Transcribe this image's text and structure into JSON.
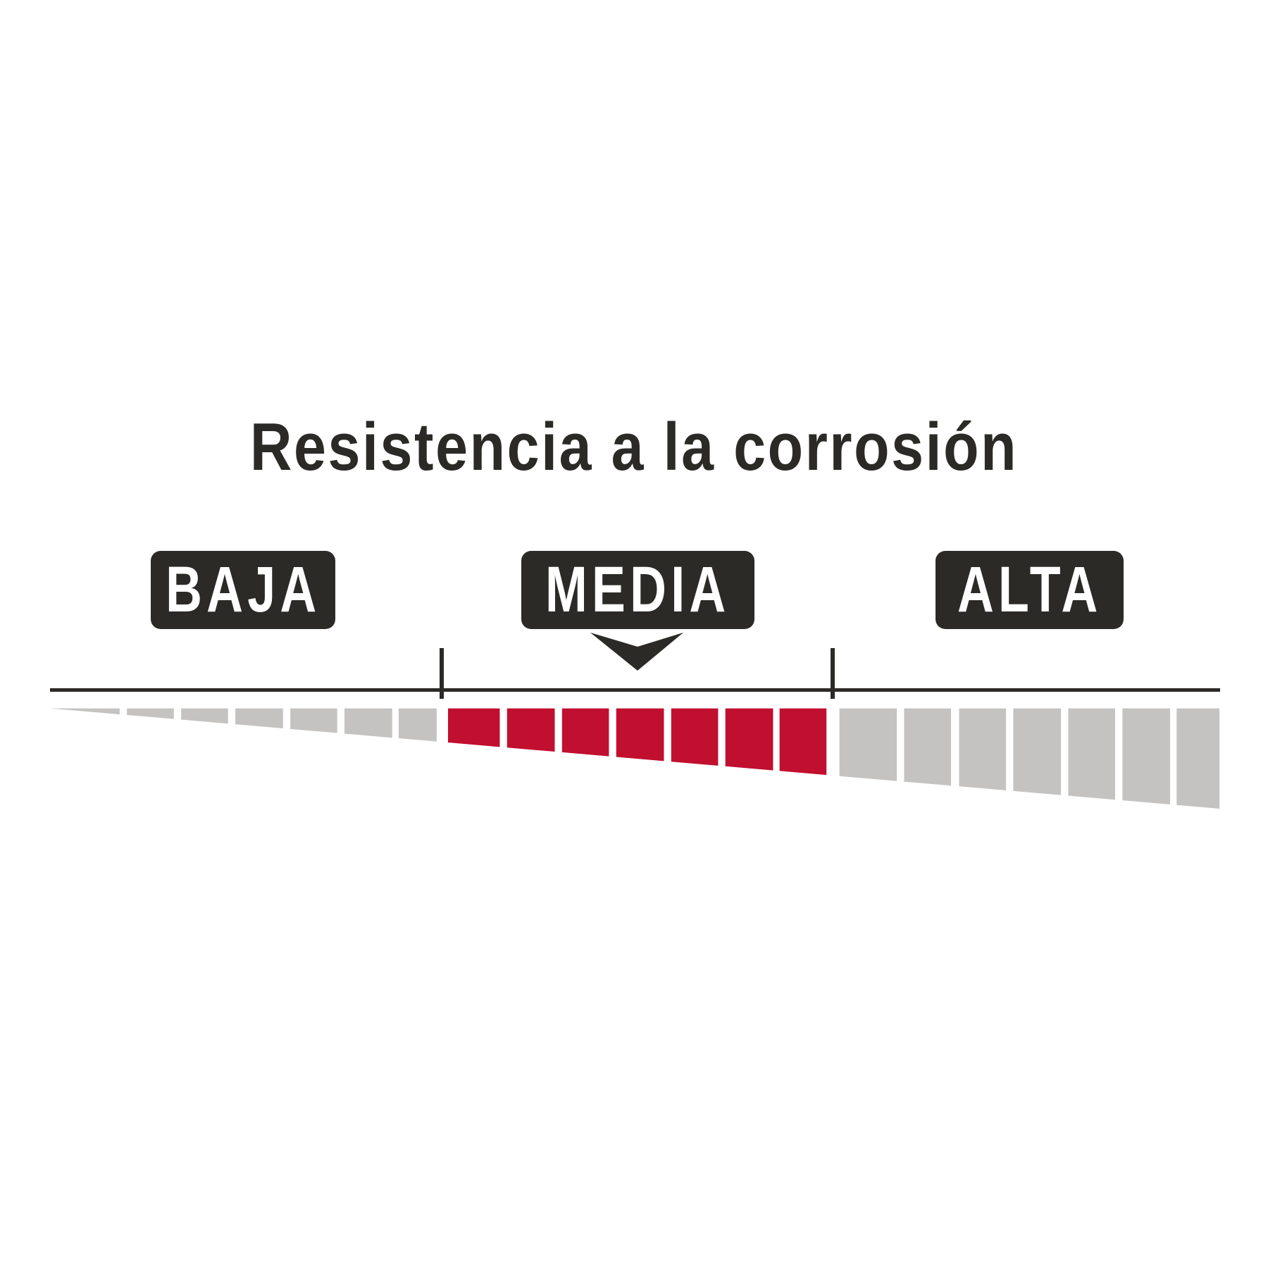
{
  "title": "Resistencia a la corrosión",
  "levels": [
    {
      "label": "BAJA",
      "segments": 7,
      "active": false
    },
    {
      "label": "MEDIA",
      "segments": 7,
      "active": true
    },
    {
      "label": "ALTA",
      "segments": 7,
      "active": false
    }
  ],
  "selected_level": "MEDIA",
  "colors": {
    "dark": "#2b2a26",
    "active": "#c10f2f",
    "inactive": "#c4c3c1"
  }
}
